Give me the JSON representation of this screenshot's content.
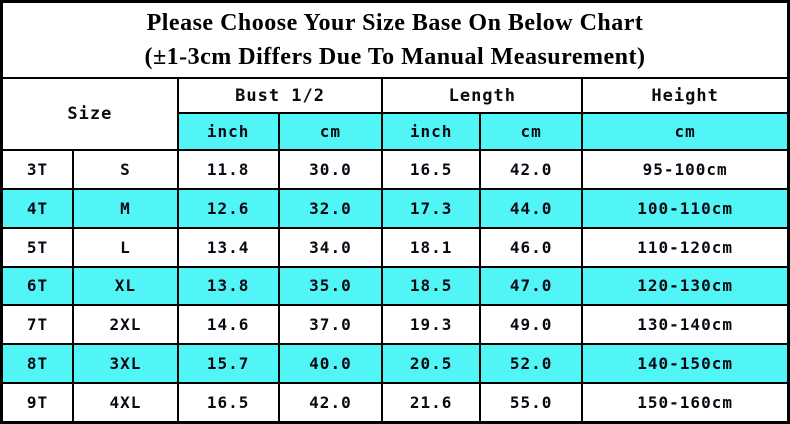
{
  "colors": {
    "highlight_cyan": "#52f5f5",
    "border": "#000000",
    "text": "#0a0a14",
    "background": "#ffffff"
  },
  "title": {
    "line1": "Please Choose Your Size Base On Below Chart",
    "line2": "(±1-3cm Differs Due To Manual Measurement)"
  },
  "table": {
    "header": {
      "size_label": "Size",
      "groups": [
        {
          "label": "Bust 1/2",
          "sub": [
            "inch",
            "cm"
          ]
        },
        {
          "label": "Length",
          "sub": [
            "inch",
            "cm"
          ]
        },
        {
          "label": "Height",
          "sub": [
            "cm"
          ]
        }
      ]
    },
    "rows": [
      {
        "size_t": "3T",
        "size_letter": "S",
        "bust_inch": "11.8",
        "bust_cm": "30.0",
        "length_inch": "16.5",
        "length_cm": "42.0",
        "height": "95-100cm",
        "highlight": false
      },
      {
        "size_t": "4T",
        "size_letter": "M",
        "bust_inch": "12.6",
        "bust_cm": "32.0",
        "length_inch": "17.3",
        "length_cm": "44.0",
        "height": "100-110cm",
        "highlight": true
      },
      {
        "size_t": "5T",
        "size_letter": "L",
        "bust_inch": "13.4",
        "bust_cm": "34.0",
        "length_inch": "18.1",
        "length_cm": "46.0",
        "height": "110-120cm",
        "highlight": false
      },
      {
        "size_t": "6T",
        "size_letter": "XL",
        "bust_inch": "13.8",
        "bust_cm": "35.0",
        "length_inch": "18.5",
        "length_cm": "47.0",
        "height": "120-130cm",
        "highlight": true
      },
      {
        "size_t": "7T",
        "size_letter": "2XL",
        "bust_inch": "14.6",
        "bust_cm": "37.0",
        "length_inch": "19.3",
        "length_cm": "49.0",
        "height": "130-140cm",
        "highlight": false
      },
      {
        "size_t": "8T",
        "size_letter": "3XL",
        "bust_inch": "15.7",
        "bust_cm": "40.0",
        "length_inch": "20.5",
        "length_cm": "52.0",
        "height": "140-150cm",
        "highlight": true
      },
      {
        "size_t": "9T",
        "size_letter": "4XL",
        "bust_inch": "16.5",
        "bust_cm": "42.0",
        "length_inch": "21.6",
        "length_cm": "55.0",
        "height": "150-160cm",
        "highlight": false
      }
    ]
  },
  "chart_data": {
    "type": "table",
    "title": "Please Choose Your Size Base On Below Chart (±1-3cm Differs Due To Manual Measurement)",
    "columns": [
      "Size (age)",
      "Size (letter)",
      "Bust 1/2 inch",
      "Bust 1/2 cm",
      "Length inch",
      "Length cm",
      "Height cm"
    ],
    "rows": [
      [
        "3T",
        "S",
        11.8,
        30.0,
        16.5,
        42.0,
        "95-100cm"
      ],
      [
        "4T",
        "M",
        12.6,
        32.0,
        17.3,
        44.0,
        "100-110cm"
      ],
      [
        "5T",
        "L",
        13.4,
        34.0,
        18.1,
        46.0,
        "110-120cm"
      ],
      [
        "6T",
        "XL",
        13.8,
        35.0,
        18.5,
        47.0,
        "120-130cm"
      ],
      [
        "7T",
        "2XL",
        14.6,
        37.0,
        19.3,
        49.0,
        "130-140cm"
      ],
      [
        "8T",
        "3XL",
        15.7,
        40.0,
        20.5,
        52.0,
        "140-150cm"
      ],
      [
        "9T",
        "4XL",
        16.5,
        42.0,
        21.6,
        55.0,
        "150-160cm"
      ]
    ],
    "layout": {
      "row_striping": "alternating white / cyan starting white",
      "header_subrow_background": "cyan",
      "grid": true
    }
  }
}
